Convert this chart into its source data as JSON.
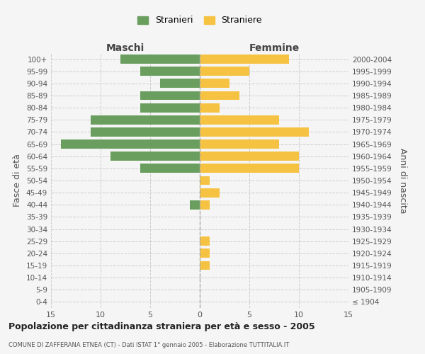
{
  "age_groups": [
    "0-4",
    "5-9",
    "10-14",
    "15-19",
    "20-24",
    "25-29",
    "30-34",
    "35-39",
    "40-44",
    "45-49",
    "50-54",
    "55-59",
    "60-64",
    "65-69",
    "70-74",
    "75-79",
    "80-84",
    "85-89",
    "90-94",
    "95-99",
    "100+"
  ],
  "birth_years": [
    "2000-2004",
    "1995-1999",
    "1990-1994",
    "1985-1989",
    "1980-1984",
    "1975-1979",
    "1970-1974",
    "1965-1969",
    "1960-1964",
    "1955-1959",
    "1950-1954",
    "1945-1949",
    "1940-1944",
    "1935-1939",
    "1930-1934",
    "1925-1929",
    "1920-1924",
    "1915-1919",
    "1910-1914",
    "1905-1909",
    "≤ 1904"
  ],
  "maschi": [
    8,
    6,
    4,
    6,
    6,
    11,
    11,
    14,
    9,
    6,
    0,
    0,
    1,
    0,
    0,
    0,
    0,
    0,
    0,
    0,
    0
  ],
  "femmine": [
    9,
    5,
    3,
    4,
    2,
    8,
    11,
    8,
    10,
    10,
    1,
    2,
    1,
    0,
    0,
    1,
    1,
    1,
    0,
    0,
    0
  ],
  "color_maschi": "#6a9e5f",
  "color_femmine": "#f5c242",
  "bg_color": "#f5f5f5",
  "grid_color": "#cccccc",
  "title": "Popolazione per cittadinanza straniera per età e sesso - 2005",
  "subtitle": "COMUNE DI ZAFFERANA ETNEA (CT) - Dati ISTAT 1° gennaio 2005 - Elaborazione TUTTITALIA.IT",
  "xlabel_left": "Maschi",
  "xlabel_right": "Femmine",
  "ylabel_left": "Fasce di età",
  "ylabel_right": "Anni di nascita",
  "legend_maschi": "Stranieri",
  "legend_femmine": "Straniere",
  "xlim": 15
}
